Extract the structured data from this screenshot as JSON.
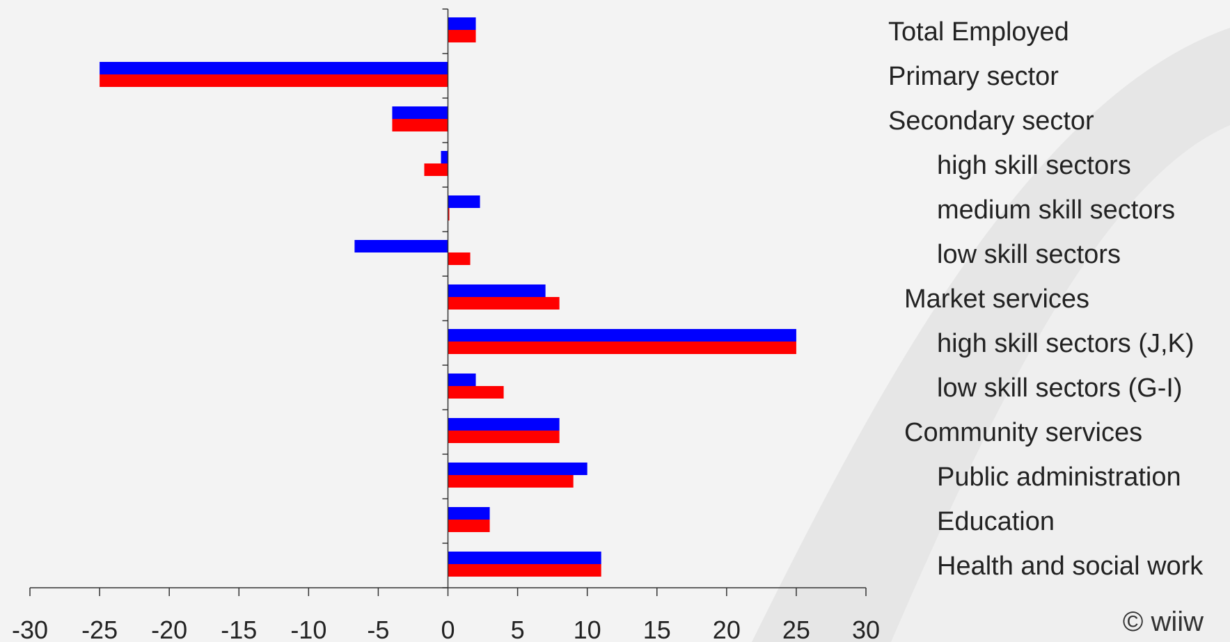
{
  "chart_data": {
    "type": "bar",
    "orientation": "horizontal",
    "categories": [
      "Total Employed",
      "Primary sector",
      "Secondary sector",
      "high skill sectors",
      "medium skill sectors",
      "low skill sectors",
      "Market services",
      "high skill sectors (J,K)",
      "low skill sectors (G-I)",
      "Community services",
      "Public administration",
      "Education",
      "Health and social work"
    ],
    "category_indent": [
      0,
      0,
      0,
      2,
      2,
      2,
      1,
      2,
      2,
      1,
      2,
      2,
      2
    ],
    "series": [
      {
        "color": "#0000ff",
        "values": [
          2,
          -25,
          -4,
          -0.5,
          2.3,
          -6.7,
          7,
          25,
          2,
          8,
          10,
          3,
          11
        ]
      },
      {
        "color": "#ff0000",
        "values": [
          2,
          -25,
          -4,
          -1.7,
          0.1,
          1.6,
          8,
          25,
          4,
          8,
          9,
          3,
          11
        ]
      }
    ],
    "xlim": [
      -30,
      30
    ],
    "xticks": [
      -30,
      -25,
      -20,
      -15,
      -10,
      -5,
      0,
      5,
      10,
      15,
      20,
      25,
      30
    ],
    "xlabel": "",
    "ylabel": "",
    "title": "",
    "grid": false,
    "legend": "none"
  },
  "footer": {
    "copyright": "© wiiw"
  }
}
